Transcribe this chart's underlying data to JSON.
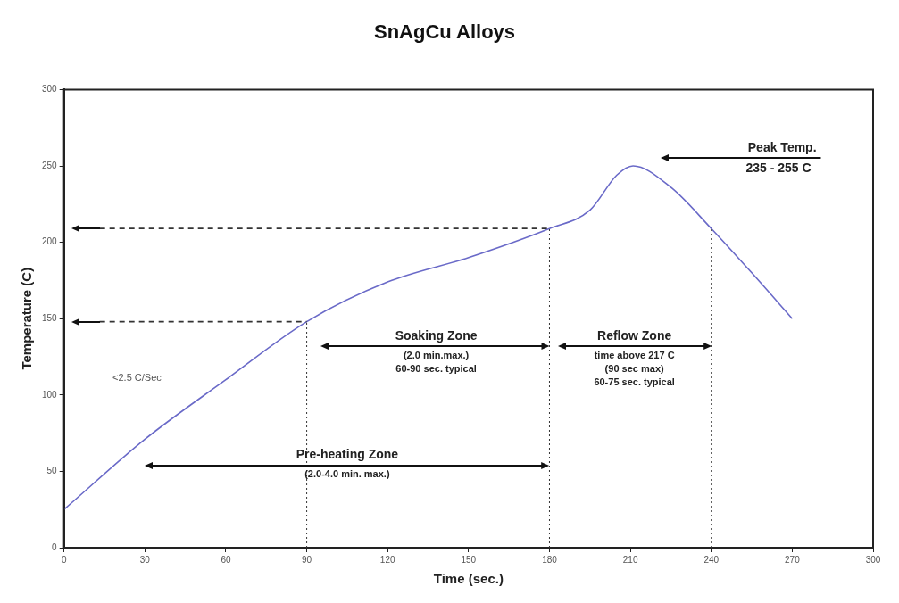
{
  "chart_data": {
    "type": "line",
    "title": "SnAgCu Alloys",
    "xlabel": "Time (sec.)",
    "ylabel": "Temperature (C)",
    "x": [
      0,
      30,
      60,
      90,
      120,
      150,
      180,
      195,
      205,
      211,
      225,
      240,
      255,
      270
    ],
    "series": [
      {
        "color": "#6a6ac8",
        "values": [
          25,
          71,
          110,
          148,
          174,
          190,
          209,
          221,
          244,
          250,
          236,
          209,
          180,
          150
        ]
      }
    ],
    "xlim": [
      0,
      300
    ],
    "xticks": [
      0,
      30,
      60,
      90,
      120,
      150,
      180,
      210,
      240,
      270,
      300
    ],
    "ylim": [
      0,
      300
    ],
    "yticks": [
      0,
      50,
      100,
      150,
      200,
      250,
      300
    ],
    "grid": false,
    "legend": false,
    "marker": "none",
    "line_style": "solid",
    "ref_lines": [
      {
        "axis": "x",
        "value": 90,
        "line_style": "dotted"
      },
      {
        "axis": "x",
        "value": 180,
        "line_style": "dotted"
      },
      {
        "axis": "x",
        "value": 240,
        "line_style": "dotted"
      },
      {
        "axis": "y",
        "value": 148,
        "line_style": "dashed"
      },
      {
        "axis": "y",
        "value": 209,
        "line_style": "dashed"
      }
    ],
    "annotations": [
      "<2.5 C/Sec",
      "Soaking Zone\n(2.0 min.max.)\n60-90 sec. typical",
      "Reflow Zone\ntime above 217 C\n(90 sec max)\n60-75 sec. typical",
      "Pre-heating Zone\n(2.0-4.0 min. max.)",
      "Peak Temp.\n235 - 255 C"
    ]
  }
}
